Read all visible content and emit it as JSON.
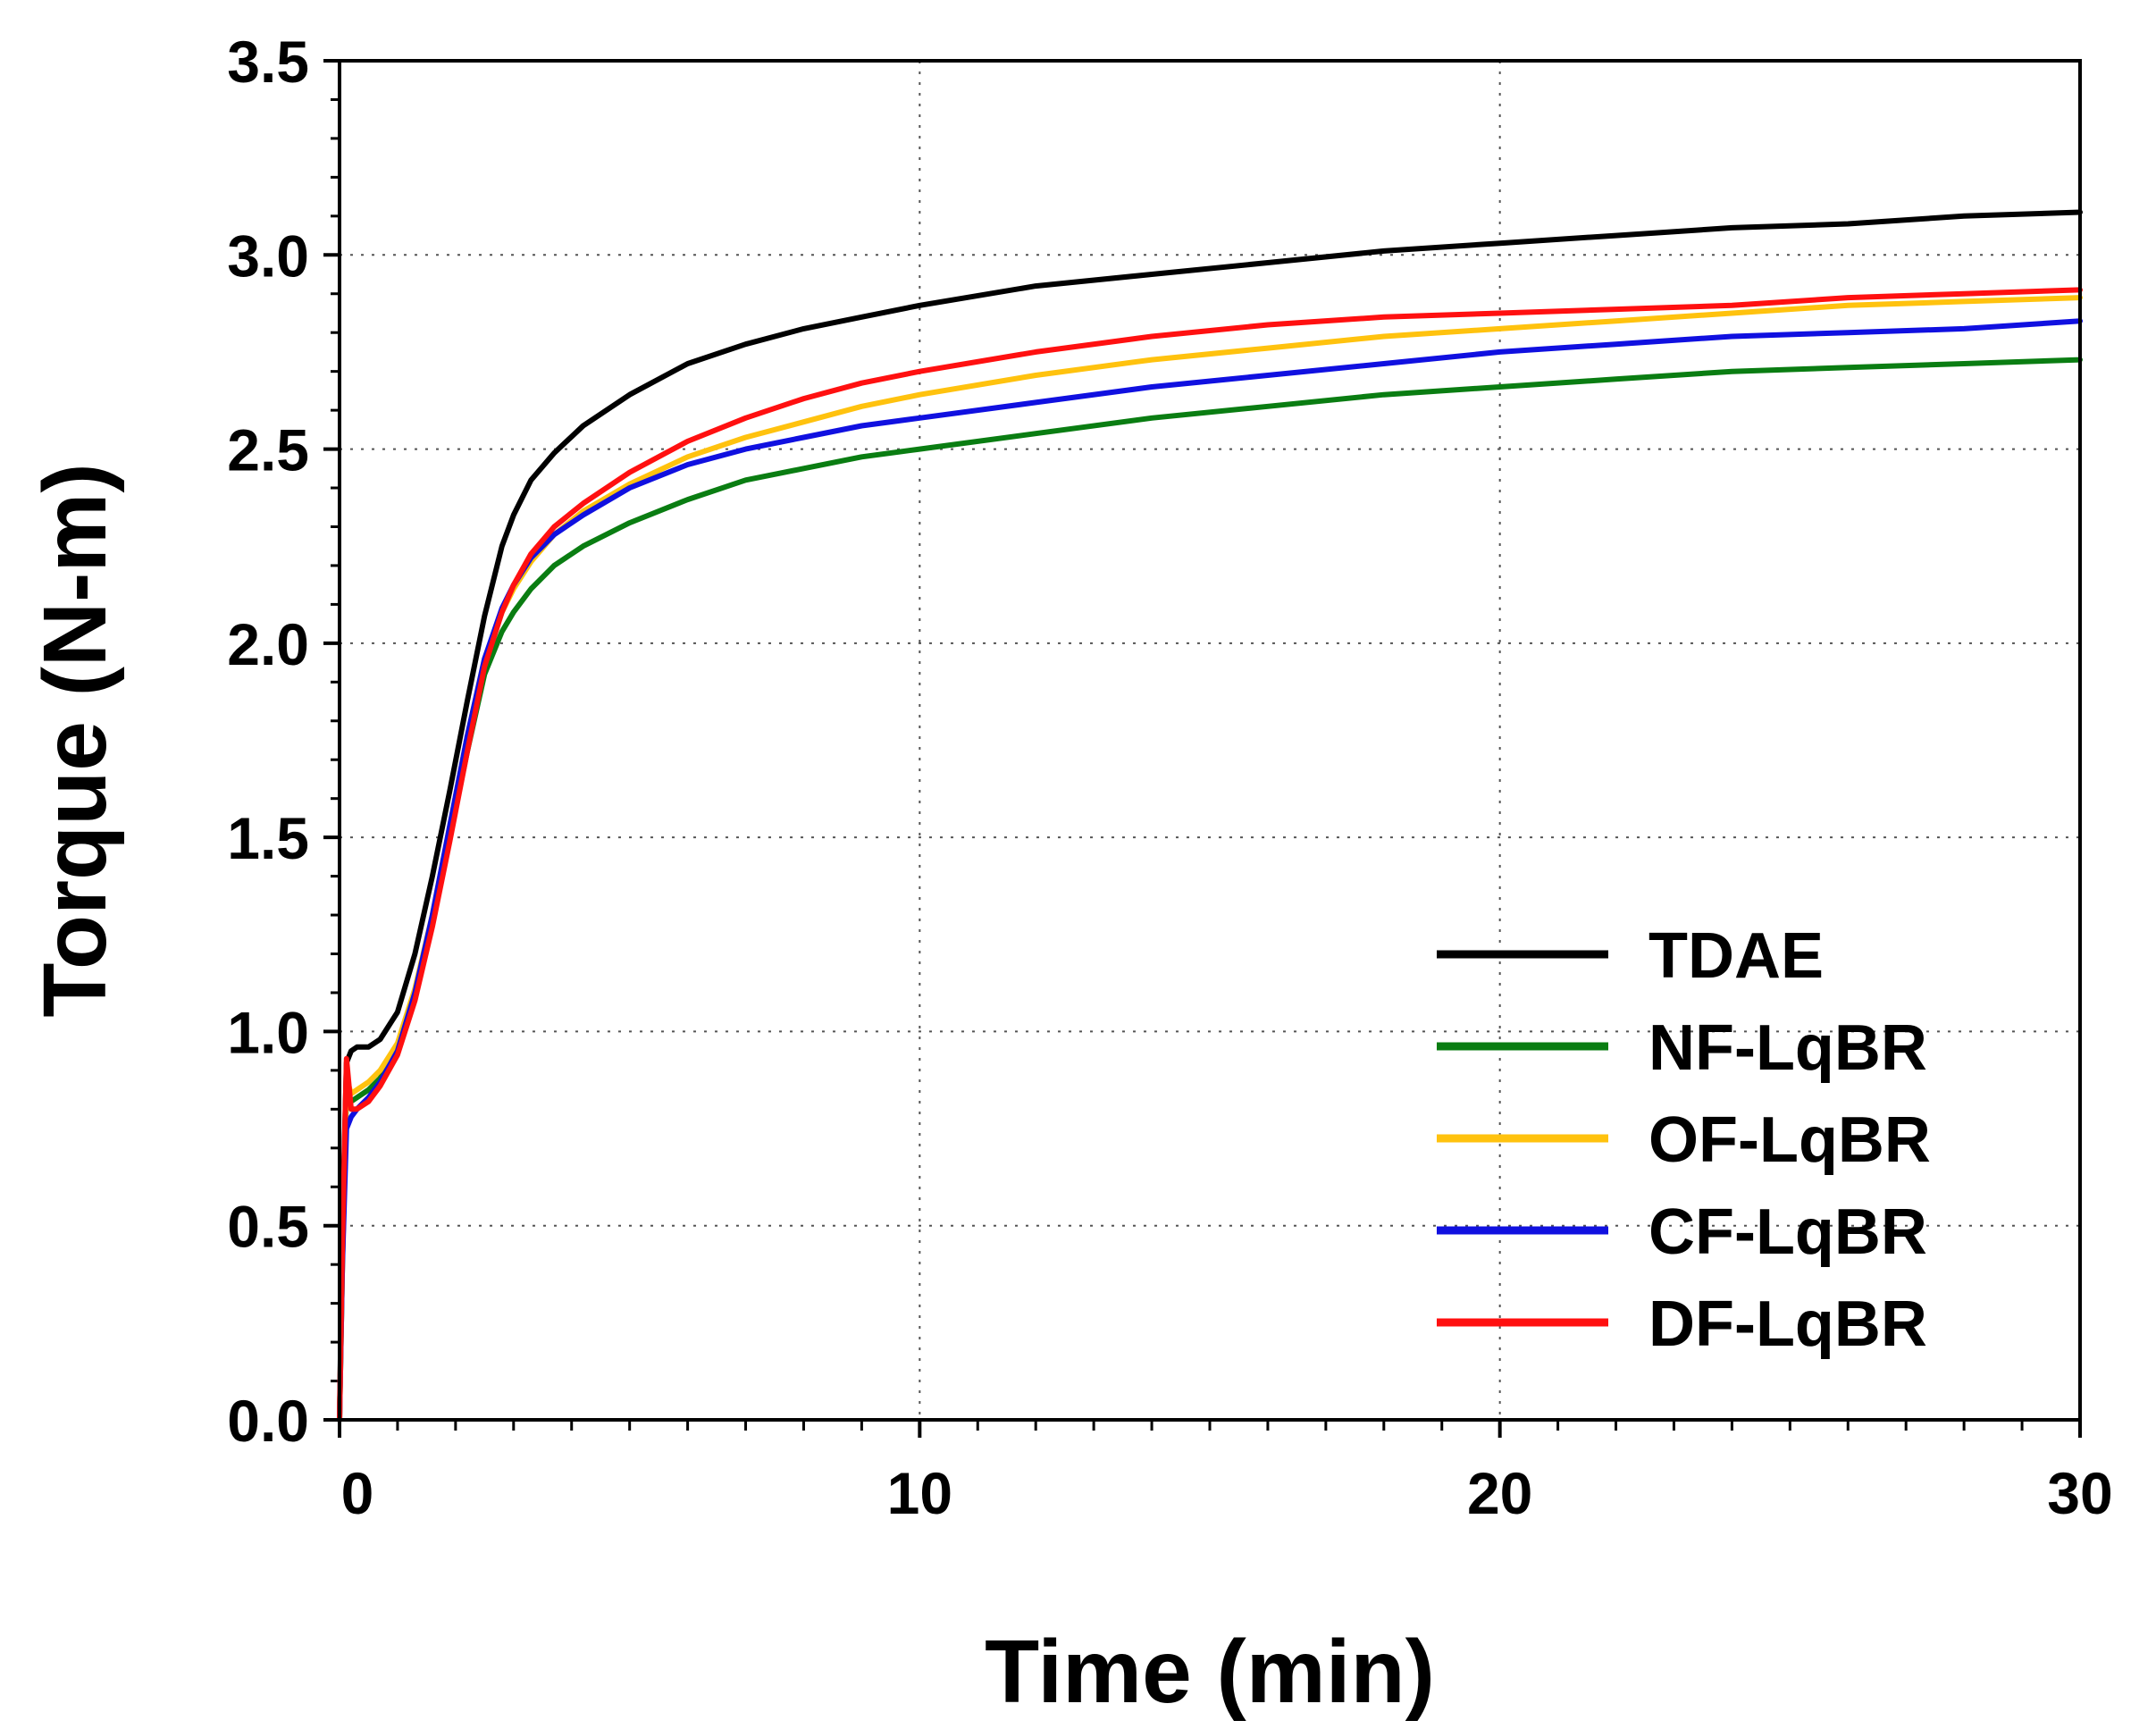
{
  "chart_data": {
    "type": "line",
    "title": "",
    "xlabel": "Time (min)",
    "ylabel": "Torque (N-m)",
    "xlim": [
      0,
      30
    ],
    "ylim": [
      0,
      3.5
    ],
    "xticks": [
      "0",
      "10",
      "20",
      "30"
    ],
    "yticks": [
      "0.0",
      "0.5",
      "1.0",
      "1.5",
      "2.0",
      "2.5",
      "3.0",
      "3.5"
    ],
    "grid": true,
    "legend_position": "bottom-right",
    "series": [
      {
        "name": "TDAE",
        "color": "#000000",
        "x": [
          0,
          0.05,
          0.12,
          0.2,
          0.3,
          0.5,
          0.7,
          1.0,
          1.3,
          1.6,
          1.9,
          2.2,
          2.5,
          2.8,
          3.0,
          3.3,
          3.7,
          4.2,
          5,
          6,
          7,
          8,
          9,
          10,
          12,
          14,
          16,
          18,
          20,
          22,
          24,
          26,
          28,
          30
        ],
        "y": [
          0.0,
          0.5,
          0.92,
          0.95,
          0.96,
          0.96,
          0.98,
          1.05,
          1.2,
          1.4,
          1.62,
          1.85,
          2.07,
          2.25,
          2.33,
          2.42,
          2.49,
          2.56,
          2.64,
          2.72,
          2.77,
          2.81,
          2.84,
          2.87,
          2.92,
          2.95,
          2.98,
          3.01,
          3.03,
          3.05,
          3.07,
          3.08,
          3.1,
          3.11
        ]
      },
      {
        "name": "NF-LqBR",
        "color": "#0a7d12",
        "x": [
          0,
          0.05,
          0.12,
          0.2,
          0.3,
          0.5,
          0.7,
          1.0,
          1.3,
          1.6,
          1.9,
          2.2,
          2.5,
          2.8,
          3.0,
          3.3,
          3.7,
          4.2,
          5,
          6,
          7,
          8,
          9,
          10,
          12,
          14,
          16,
          18,
          20,
          22,
          24,
          26,
          28,
          30
        ],
        "y": [
          0.0,
          0.4,
          0.85,
          0.82,
          0.83,
          0.85,
          0.88,
          0.96,
          1.1,
          1.28,
          1.5,
          1.72,
          1.92,
          2.03,
          2.08,
          2.14,
          2.2,
          2.25,
          2.31,
          2.37,
          2.42,
          2.45,
          2.48,
          2.5,
          2.54,
          2.58,
          2.61,
          2.64,
          2.66,
          2.68,
          2.7,
          2.71,
          2.72,
          2.73
        ]
      },
      {
        "name": "OF-LqBR",
        "color": "#ffc20e",
        "x": [
          0,
          0.05,
          0.12,
          0.2,
          0.3,
          0.5,
          0.7,
          1.0,
          1.3,
          1.6,
          1.9,
          2.2,
          2.5,
          2.8,
          3.0,
          3.3,
          3.7,
          4.2,
          5,
          6,
          7,
          8,
          9,
          10,
          12,
          14,
          16,
          18,
          20,
          22,
          24,
          26,
          28,
          30
        ],
        "y": [
          0.0,
          0.4,
          0.88,
          0.84,
          0.85,
          0.87,
          0.9,
          0.97,
          1.11,
          1.3,
          1.53,
          1.76,
          1.96,
          2.08,
          2.14,
          2.21,
          2.28,
          2.34,
          2.41,
          2.48,
          2.53,
          2.57,
          2.61,
          2.64,
          2.69,
          2.73,
          2.76,
          2.79,
          2.81,
          2.83,
          2.85,
          2.87,
          2.88,
          2.89
        ]
      },
      {
        "name": "CF-LqBR",
        "color": "#1010e0",
        "x": [
          0,
          0.05,
          0.12,
          0.2,
          0.3,
          0.5,
          0.7,
          1.0,
          1.3,
          1.6,
          1.9,
          2.2,
          2.5,
          2.8,
          3.0,
          3.3,
          3.7,
          4.2,
          5,
          6,
          7,
          8,
          9,
          10,
          12,
          14,
          16,
          18,
          20,
          22,
          24,
          26,
          28,
          30
        ],
        "y": [
          0.0,
          0.4,
          0.75,
          0.78,
          0.8,
          0.83,
          0.87,
          0.95,
          1.1,
          1.3,
          1.53,
          1.76,
          1.96,
          2.09,
          2.15,
          2.22,
          2.28,
          2.33,
          2.4,
          2.46,
          2.5,
          2.53,
          2.56,
          2.58,
          2.62,
          2.66,
          2.69,
          2.72,
          2.75,
          2.77,
          2.79,
          2.8,
          2.81,
          2.83
        ]
      },
      {
        "name": "DF-LqBR",
        "color": "#ff1010",
        "x": [
          0,
          0.05,
          0.12,
          0.2,
          0.3,
          0.5,
          0.7,
          1.0,
          1.3,
          1.6,
          1.9,
          2.2,
          2.5,
          2.8,
          3.0,
          3.3,
          3.7,
          4.2,
          5,
          6,
          7,
          8,
          9,
          10,
          12,
          14,
          16,
          18,
          20,
          22,
          24,
          26,
          28,
          30
        ],
        "y": [
          0.0,
          0.45,
          0.93,
          0.8,
          0.8,
          0.82,
          0.86,
          0.94,
          1.08,
          1.27,
          1.49,
          1.72,
          1.94,
          2.08,
          2.15,
          2.23,
          2.3,
          2.36,
          2.44,
          2.52,
          2.58,
          2.63,
          2.67,
          2.7,
          2.75,
          2.79,
          2.82,
          2.84,
          2.85,
          2.86,
          2.87,
          2.89,
          2.9,
          2.91
        ]
      }
    ]
  }
}
